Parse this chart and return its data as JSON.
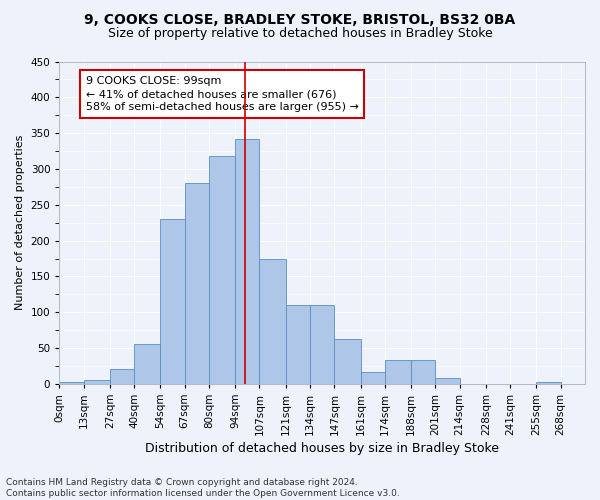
{
  "title1": "9, COOKS CLOSE, BRADLEY STOKE, BRISTOL, BS32 0BA",
  "title2": "Size of property relative to detached houses in Bradley Stoke",
  "xlabel": "Distribution of detached houses by size in Bradley Stoke",
  "ylabel": "Number of detached properties",
  "footer1": "Contains HM Land Registry data © Crown copyright and database right 2024.",
  "footer2": "Contains public sector information licensed under the Open Government Licence v3.0.",
  "bin_labels": [
    "0sqm",
    "13sqm",
    "27sqm",
    "40sqm",
    "54sqm",
    "67sqm",
    "80sqm",
    "94sqm",
    "107sqm",
    "121sqm",
    "134sqm",
    "147sqm",
    "161sqm",
    "174sqm",
    "188sqm",
    "201sqm",
    "214sqm",
    "228sqm",
    "241sqm",
    "255sqm",
    "268sqm"
  ],
  "bin_edges": [
    0,
    13,
    27,
    40,
    54,
    67,
    80,
    94,
    107,
    121,
    134,
    147,
    161,
    174,
    188,
    201,
    214,
    228,
    241,
    255,
    268,
    281
  ],
  "bar_heights": [
    2,
    6,
    21,
    55,
    230,
    280,
    318,
    342,
    175,
    110,
    110,
    62,
    16,
    33,
    33,
    8,
    0,
    0,
    0,
    2,
    0
  ],
  "bar_color": "#aec6e8",
  "bar_edge_color": "#5a8fc0",
  "property_size": 99,
  "vline_color": "#cc0000",
  "annotation_text": "9 COOKS CLOSE: 99sqm\n← 41% of detached houses are smaller (676)\n58% of semi-detached houses are larger (955) →",
  "annotation_box_color": "#cc0000",
  "ylim": [
    0,
    450
  ],
  "yticks": [
    0,
    50,
    100,
    150,
    200,
    250,
    300,
    350,
    400,
    450
  ],
  "bg_color": "#eef2fa",
  "grid_color": "#ffffff",
  "title_fontsize": 10,
  "subtitle_fontsize": 9,
  "axis_label_fontsize": 9,
  "ylabel_fontsize": 8,
  "tick_fontsize": 7.5,
  "footer_fontsize": 6.5
}
